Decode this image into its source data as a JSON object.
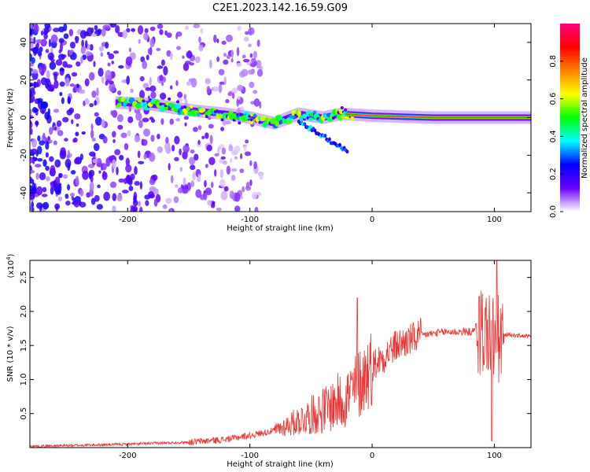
{
  "title": "C2E1.2023.142.16.59.G09",
  "chart_data": [
    {
      "type": "heatmap",
      "title": "C2E1.2023.142.16.59.G09",
      "xlabel": "Height of straight line (km)",
      "ylabel": "Frequency (Hz)",
      "xlim": [
        -280,
        130
      ],
      "ylim": [
        -50,
        50
      ],
      "x_ticks": [
        "-200",
        "-100",
        "0",
        "100"
      ],
      "y_ticks": [
        "-40",
        "-20",
        "0",
        "20",
        "40"
      ],
      "ridge": [
        {
          "x": -208,
          "y": 8
        },
        {
          "x": -180,
          "y": 7
        },
        {
          "x": -150,
          "y": 4
        },
        {
          "x": -120,
          "y": 2
        },
        {
          "x": -100,
          "y": 0
        },
        {
          "x": -80,
          "y": -3
        },
        {
          "x": -60,
          "y": 2
        },
        {
          "x": -40,
          "y": 0
        },
        {
          "x": -25,
          "y": 2
        },
        {
          "x": 0,
          "y": 1
        },
        {
          "x": 50,
          "y": 0
        },
        {
          "x": 130,
          "y": 0
        }
      ],
      "branch": [
        {
          "x": -60,
          "y": -2
        },
        {
          "x": -45,
          "y": -8
        },
        {
          "x": -30,
          "y": -14
        },
        {
          "x": -20,
          "y": -18
        }
      ],
      "colorbar": {
        "label": "Normalized spectral amplitude",
        "range": [
          0,
          1
        ],
        "ticks": [
          "0.0",
          "0.2",
          "0.4",
          "0.6",
          "0.8"
        ],
        "colors": [
          "#ffffff",
          "#6a00ff",
          "#0000ff",
          "#00ffff",
          "#00ff00",
          "#ffff00",
          "#ff8000",
          "#ff0000",
          "#ff0080"
        ]
      }
    },
    {
      "type": "line",
      "xlabel": "Height of straight line (km)",
      "ylabel": "SNR (10 * v/v)",
      "y_multiplier": "(x10",
      "y_multiplier_exp": "4",
      "y_multiplier_close": ")",
      "xlim": [
        -280,
        130
      ],
      "ylim": [
        0,
        2.75
      ],
      "x_ticks": [
        "-200",
        "-100",
        "0",
        "100"
      ],
      "y_ticks": [
        "0.5",
        "1.0",
        "1.5",
        "2.0",
        "2.5"
      ],
      "color": "#ee3333",
      "series": [
        {
          "x": [
            -280,
            -250,
            -200,
            -150,
            -120,
            -100,
            -80,
            -60,
            -40,
            -20,
            -10,
            0,
            20,
            40,
            60,
            80,
            90,
            95,
            100,
            103,
            106,
            110,
            130
          ],
          "values": [
            0.02,
            0.03,
            0.05,
            0.08,
            0.12,
            0.18,
            0.25,
            0.4,
            0.55,
            0.75,
            0.95,
            1.2,
            1.5,
            1.65,
            1.7,
            1.7,
            1.72,
            1.68,
            1.6,
            1.55,
            1.62,
            1.66,
            1.63
          ]
        }
      ],
      "peaks": [
        {
          "x": -12,
          "y": 2.2
        },
        {
          "x": 85,
          "y": 1.82
        },
        {
          "x": 102,
          "y": 2.75
        },
        {
          "x": 98,
          "y": 0.1
        }
      ]
    }
  ]
}
